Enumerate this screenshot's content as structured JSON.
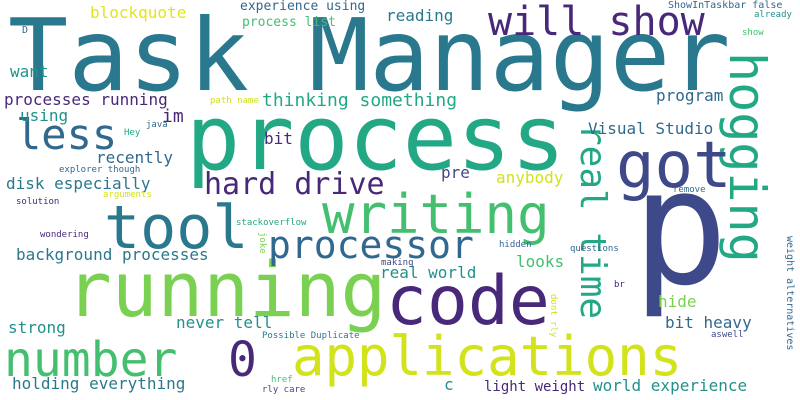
{
  "palette": {
    "background": "#ffffff",
    "dark_teal": "#2a788e",
    "purple": "#482878",
    "indigo": "#3e4989",
    "slate_blue": "#31688e",
    "teal": "#21918c",
    "green_teal": "#22a884",
    "green": "#44bf70",
    "lime": "#7ad151",
    "yellow": "#d2e21b",
    "bright_yellow": "#e5e419"
  },
  "words": [
    {
      "text": "Task Manager",
      "color": "#2a788e"
    },
    {
      "text": "process",
      "color": "#22a884"
    },
    {
      "text": "p",
      "color": "#3e4989"
    },
    {
      "text": "running",
      "color": "#7ad151"
    },
    {
      "text": "code",
      "color": "#482878"
    },
    {
      "text": "writing",
      "color": "#44bf70"
    },
    {
      "text": "applications",
      "color": "#d2e21b"
    },
    {
      "text": "tool",
      "color": "#2a788e"
    },
    {
      "text": "number",
      "color": "#44bf70"
    },
    {
      "text": "0",
      "color": "#482878"
    },
    {
      "text": "will show",
      "color": "#482878"
    },
    {
      "text": "hogging",
      "color": "#22a884"
    },
    {
      "text": "got",
      "color": "#3e4989"
    },
    {
      "text": "less",
      "color": "#31688e"
    },
    {
      "text": "processor",
      "color": "#31688e"
    },
    {
      "text": "real time",
      "color": "#22a884"
    },
    {
      "text": "hard drive",
      "color": "#482878"
    },
    {
      "text": "blockquote",
      "color": "#e5e419"
    },
    {
      "text": "process list",
      "color": "#44bf70"
    },
    {
      "text": "experience using",
      "color": "#31688e"
    },
    {
      "text": "reading",
      "color": "#2a788e"
    },
    {
      "text": "want",
      "color": "#21918c"
    },
    {
      "text": "processes running",
      "color": "#482878"
    },
    {
      "text": "thinking something",
      "color": "#22a884"
    },
    {
      "text": "using",
      "color": "#21918c"
    },
    {
      "text": "im",
      "color": "#482878"
    },
    {
      "text": "program",
      "color": "#31688e"
    },
    {
      "text": "Visual Studio",
      "color": "#31688e"
    },
    {
      "text": "bit",
      "color": "#482878"
    },
    {
      "text": "recently",
      "color": "#31688e"
    },
    {
      "text": "disk especially",
      "color": "#2a788e"
    },
    {
      "text": "pre",
      "color": "#3e4989"
    },
    {
      "text": "anybody",
      "color": "#d2e21b"
    },
    {
      "text": "background processes",
      "color": "#2a788e"
    },
    {
      "text": "looks",
      "color": "#44bf70"
    },
    {
      "text": "real world",
      "color": "#21918c"
    },
    {
      "text": "hide",
      "color": "#7ad151"
    },
    {
      "text": "strong",
      "color": "#21918c"
    },
    {
      "text": "never tell",
      "color": "#21918c"
    },
    {
      "text": "bit heavy",
      "color": "#31688e"
    },
    {
      "text": "holding everything",
      "color": "#2a788e"
    },
    {
      "text": "c",
      "color": "#21918c"
    },
    {
      "text": "light weight",
      "color": "#482878"
    },
    {
      "text": "world experience",
      "color": "#21918c"
    },
    {
      "text": "ShowInTaskbar false",
      "color": "#31688e"
    },
    {
      "text": "already",
      "color": "#21918c"
    },
    {
      "text": "show",
      "color": "#44bf70"
    },
    {
      "text": "D",
      "color": "#31688e"
    },
    {
      "text": "path name",
      "color": "#d2e21b"
    },
    {
      "text": "java",
      "color": "#31688e"
    },
    {
      "text": "Hey",
      "color": "#22a884"
    },
    {
      "text": "explorer though",
      "color": "#31688e"
    },
    {
      "text": "arguments",
      "color": "#d2e21b"
    },
    {
      "text": "remove",
      "color": "#31688e"
    },
    {
      "text": "solution",
      "color": "#482878"
    },
    {
      "text": "stackoverflow",
      "color": "#22a884"
    },
    {
      "text": "wondering",
      "color": "#482878"
    },
    {
      "text": "hidden",
      "color": "#31688e"
    },
    {
      "text": "questions",
      "color": "#31688e"
    },
    {
      "text": "making",
      "color": "#3e4989"
    },
    {
      "text": "joke",
      "color": "#7ad151"
    },
    {
      "text": "weight alternatives",
      "color": "#31688e"
    },
    {
      "text": "br",
      "color": "#482878"
    },
    {
      "text": "dont rly",
      "color": "#d2e21b"
    },
    {
      "text": "aswell",
      "color": "#3e4989"
    },
    {
      "text": "Possible Duplicate",
      "color": "#2a788e"
    },
    {
      "text": "href",
      "color": "#44bf70"
    },
    {
      "text": "rly care",
      "color": "#3e4989"
    }
  ]
}
